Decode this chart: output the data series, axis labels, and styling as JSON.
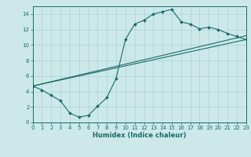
{
  "xlabel": "Humidex (Indice chaleur)",
  "background_color": "#cce8e8",
  "grid_color": "#aad4d4",
  "line_color": "#1a6b6b",
  "xlim": [
    0,
    23
  ],
  "ylim": [
    0,
    15
  ],
  "xticks": [
    0,
    1,
    2,
    3,
    4,
    5,
    6,
    7,
    8,
    9,
    10,
    11,
    12,
    13,
    14,
    15,
    16,
    17,
    18,
    19,
    20,
    21,
    22,
    23
  ],
  "yticks": [
    0,
    2,
    4,
    6,
    8,
    10,
    12,
    14
  ],
  "curve_x": [
    0,
    1,
    2,
    3,
    4,
    5,
    6,
    7,
    8,
    9,
    10,
    11,
    12,
    13,
    14,
    15,
    16,
    17,
    18,
    19,
    20,
    21,
    22,
    23
  ],
  "curve_y": [
    4.7,
    4.2,
    3.5,
    2.8,
    1.2,
    0.7,
    0.9,
    2.1,
    3.2,
    5.7,
    10.7,
    12.7,
    13.2,
    14.0,
    14.3,
    14.6,
    13.0,
    12.7,
    12.1,
    12.3,
    12.0,
    11.5,
    11.1,
    10.7
  ],
  "trend1_x": [
    0,
    23
  ],
  "trend1_y": [
    4.7,
    10.7
  ],
  "trend2_x": [
    0,
    23
  ],
  "trend2_y": [
    4.7,
    11.2
  ],
  "tick_fontsize": 5.0,
  "xlabel_fontsize": 6.0
}
